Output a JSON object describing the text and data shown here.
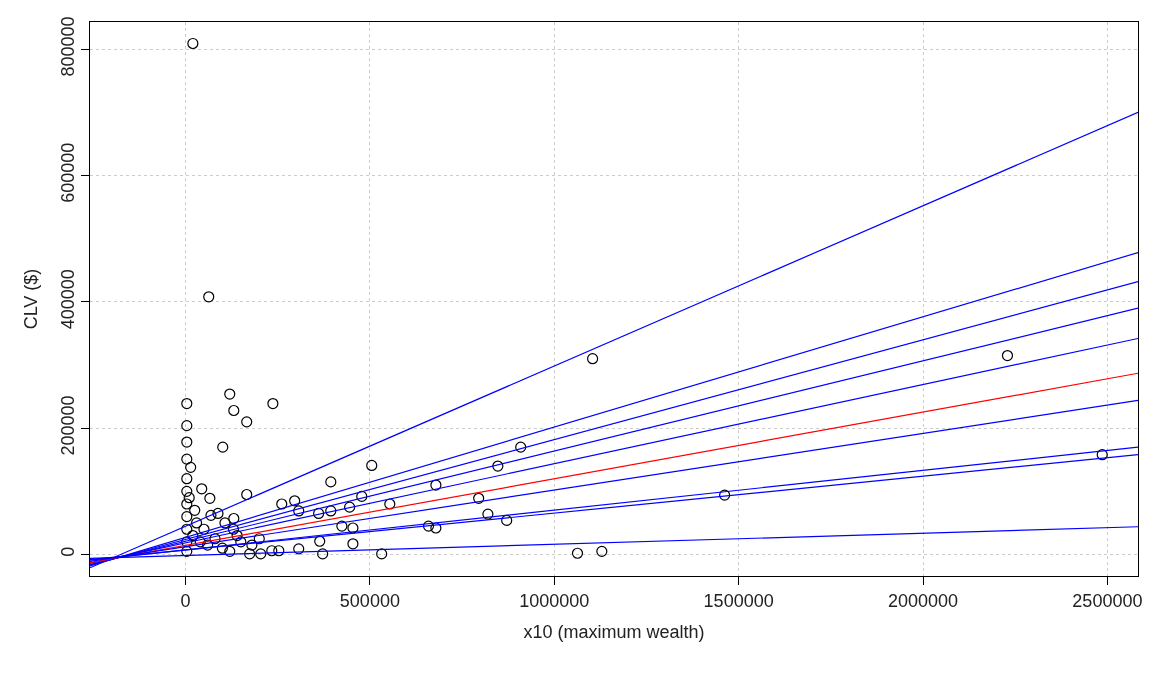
{
  "chart_data": {
    "type": "scatter",
    "xlabel": "x10 (maximum wealth)",
    "ylabel": "CLV ($)",
    "xlim": [
      -259000,
      2583000
    ],
    "ylim": [
      -34000,
      843000
    ],
    "xticks": [
      0,
      500000,
      1000000,
      1500000,
      2000000,
      2500000
    ],
    "yticks": [
      0,
      200000,
      400000,
      600000,
      800000
    ],
    "grid": true,
    "series": [
      {
        "color": "#000000",
        "marker": "circle",
        "x": [
          3500,
          3500,
          3500,
          3500,
          14000,
          20000,
          63000,
          120000,
          131000,
          166000,
          237000,
          101000,
          166000,
          44000,
          66000,
          505000,
          394000,
          478000,
          554000,
          296000,
          261000,
          307000,
          361000,
          394000,
          445000,
          424000,
          454000,
          454000,
          364000,
          372000,
          532000,
          131000,
          88000,
          69000,
          107000,
          234000,
          253000,
          307000,
          204000,
          174000,
          1104000,
          2229000,
          2486000,
          1462000,
          909000,
          847000,
          679000,
          795000,
          820000,
          871000,
          659000,
          679000,
          1063000,
          1129000,
          3500,
          3500,
          3500,
          3500,
          3500,
          3500,
          3500,
          20000,
          40000,
          60000,
          80000,
          100000,
          120000,
          150000,
          30000,
          50000,
          140000,
          180000,
          200000,
          10000,
          25000,
          130000
        ],
        "values": [
          239000,
          204000,
          178000,
          151000,
          138000,
          809000,
          408000,
          254000,
          228000,
          210000,
          239000,
          170000,
          95000,
          104000,
          89000,
          141000,
          115000,
          92000,
          80000,
          85000,
          80000,
          69000,
          65000,
          69000,
          75000,
          45000,
          42000,
          17000,
          21000,
          1000,
          1000,
          57000,
          65000,
          62000,
          50000,
          6000,
          6000,
          9000,
          1000,
          1000,
          310000,
          315000,
          158000,
          94000,
          170000,
          140000,
          110000,
          89000,
          64000,
          54000,
          45000,
          42000,
          2000,
          5000,
          120000,
          100000,
          80000,
          60000,
          40000,
          20000,
          5000,
          30000,
          20000,
          15000,
          25000,
          10000,
          5000,
          20000,
          50000,
          40000,
          30000,
          15000,
          25000,
          90000,
          70000,
          40000
        ]
      },
      {
        "type": "line",
        "color": "#0000ff",
        "line_style": "solid",
        "x": [
          -259000,
          2583000
        ],
        "values": [
          -21000,
          700000
        ]
      },
      {
        "type": "line",
        "color": "#0000ff",
        "line_style": "solid",
        "x": [
          -259000,
          2583000
        ],
        "values": [
          -18000,
          478000
        ]
      },
      {
        "type": "line",
        "color": "#0000ff",
        "line_style": "solid",
        "x": [
          -259000,
          2583000
        ],
        "values": [
          -17000,
          432000
        ]
      },
      {
        "type": "line",
        "color": "#0000ff",
        "line_style": "solid",
        "x": [
          -259000,
          2583000
        ],
        "values": [
          -16000,
          390000
        ]
      },
      {
        "type": "line",
        "color": "#0000ff",
        "line_style": "solid",
        "x": [
          -259000,
          2583000
        ],
        "values": [
          -14000,
          342000
        ]
      },
      {
        "type": "line",
        "color": "#ff0000",
        "line_style": "solid",
        "x": [
          -259000,
          2583000
        ],
        "values": [
          -13000,
          287000
        ]
      },
      {
        "type": "line",
        "color": "#0000ff",
        "line_style": "solid",
        "x": [
          -259000,
          2583000
        ],
        "values": [
          -11000,
          244000
        ]
      },
      {
        "type": "line",
        "color": "#0000ff",
        "line_style": "solid",
        "x": [
          -259000,
          2583000
        ],
        "values": [
          -9000,
          170000
        ]
      },
      {
        "type": "line",
        "color": "#0000ff",
        "line_style": "solid",
        "x": [
          -259000,
          2583000
        ],
        "values": [
          -8000,
          158000
        ]
      },
      {
        "type": "line",
        "color": "#0000ff",
        "line_style": "solid",
        "x": [
          -259000,
          2583000
        ],
        "values": [
          -6000,
          44000
        ]
      }
    ]
  }
}
